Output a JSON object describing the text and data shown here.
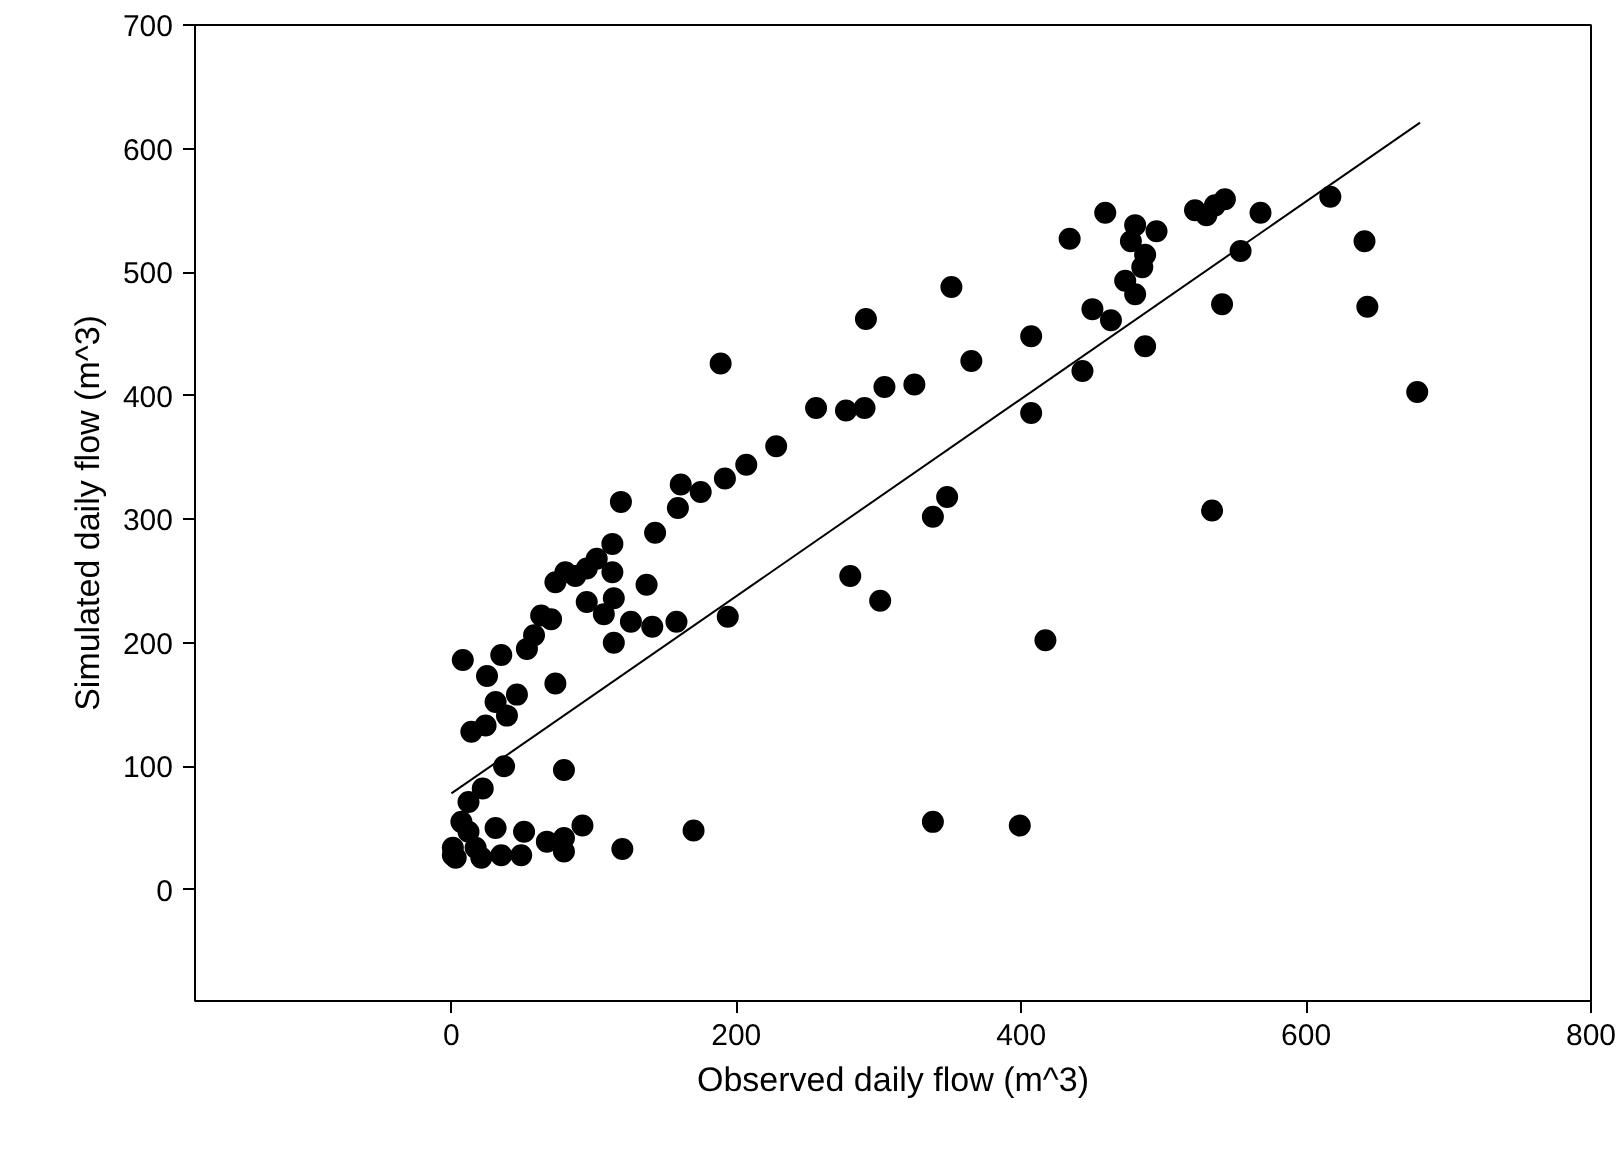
{
  "chart_data": {
    "type": "scatter",
    "xlabel": "Observed daily flow (m^3)",
    "ylabel": "Simulated daily flow (m^3)",
    "xlim": [
      -180,
      800
    ],
    "ylim": [
      -90,
      700
    ],
    "xticks": [
      0,
      200,
      400,
      600,
      800
    ],
    "yticks": [
      0,
      100,
      200,
      300,
      400,
      500,
      600,
      700
    ],
    "grid": false,
    "marker": "circle",
    "series": [
      {
        "color": "#000000",
        "x": [
          189,
          256,
          277,
          228,
          207,
          192,
          175,
          161,
          159,
          119,
          143,
          113,
          113,
          137,
          102,
          95,
          87,
          80,
          95,
          107,
          114,
          114,
          126,
          141,
          158,
          194,
          280,
          73,
          70,
          63,
          58,
          53,
          35,
          25,
          73,
          46,
          31,
          39,
          24,
          14,
          8,
          37,
          79,
          22,
          12,
          7,
          1,
          3,
          31,
          51,
          67,
          79,
          79,
          92,
          170,
          120,
          49,
          35,
          17,
          1,
          12,
          21,
          291,
          351,
          434,
          459,
          480,
          495,
          477,
          487,
          485,
          473,
          480,
          450,
          463,
          522,
          530,
          536,
          543,
          568,
          554,
          541,
          617,
          641,
          643,
          487,
          443,
          407,
          407,
          365,
          325,
          304,
          290,
          348,
          338,
          534,
          301,
          417,
          338,
          399,
          678
        ],
        "values": [
          426,
          390,
          388,
          359,
          344,
          333,
          322,
          328,
          309,
          314,
          289,
          280,
          257,
          247,
          268,
          260,
          254,
          257,
          233,
          223,
          236,
          200,
          217,
          213,
          217,
          221,
          254,
          249,
          219,
          222,
          206,
          195,
          190,
          173,
          167,
          158,
          152,
          141,
          133,
          128,
          186,
          100,
          97,
          82,
          71,
          55,
          34,
          26,
          50,
          47,
          39,
          42,
          31,
          52,
          48,
          33,
          28,
          28,
          34,
          28,
          47,
          26,
          462,
          488,
          527,
          548,
          538,
          533,
          525,
          514,
          504,
          493,
          482,
          470,
          461,
          550,
          546,
          554,
          559,
          548,
          517,
          474,
          561,
          525,
          472,
          440,
          420,
          448,
          386,
          428,
          409,
          407,
          390,
          318,
          302,
          307,
          234,
          202,
          55,
          52,
          403
        ]
      },
      {
        "type": "line",
        "color": "#000000",
        "line_style": "solid",
        "marker": "none",
        "x": [
          0,
          680
        ],
        "values": [
          78,
          621
        ]
      }
    ]
  }
}
